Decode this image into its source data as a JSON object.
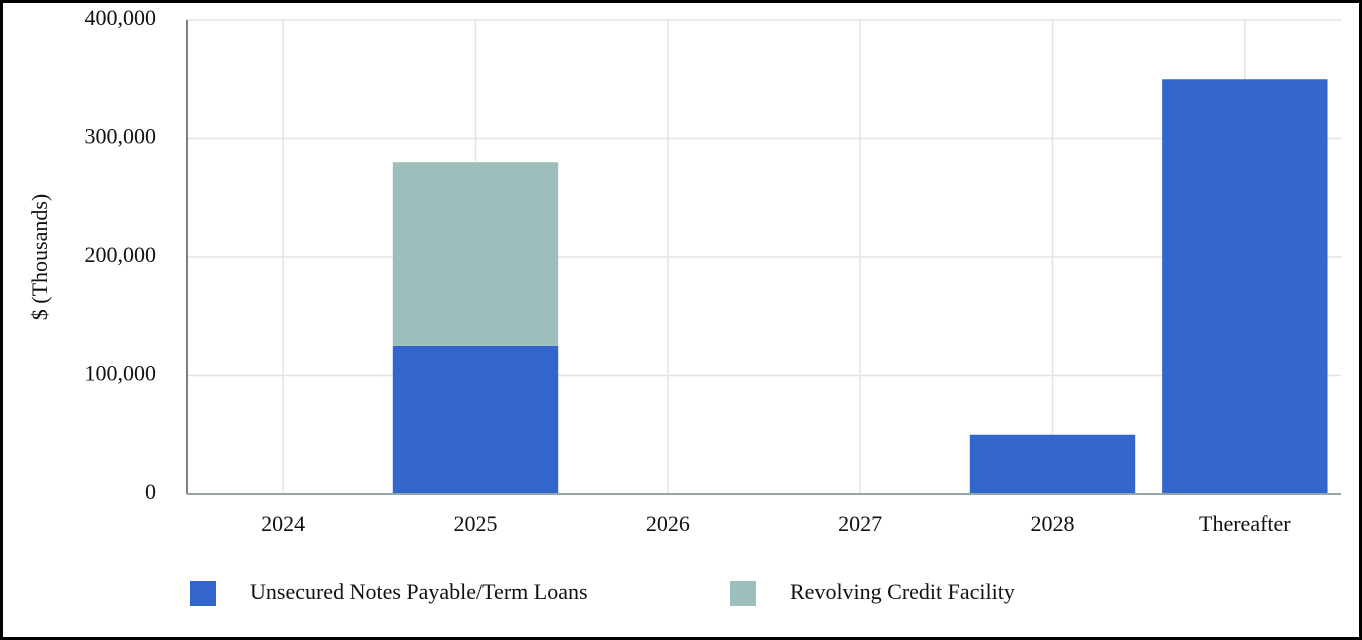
{
  "chart_data": {
    "type": "stacked-bar",
    "y_label": "$ (Thousands)",
    "categories": [
      "2024",
      "2025",
      "2026",
      "2027",
      "2028",
      "Thereafter"
    ],
    "series": [
      {
        "name": "Unsecured Notes Payable/Term Loans",
        "color": "#3366cc",
        "values": [
          0,
          125000,
          0,
          0,
          50000,
          350000
        ]
      },
      {
        "name": "Revolving Credit Facility",
        "color": "#9dbfbc",
        "values": [
          0,
          155000,
          0,
          0,
          0,
          0
        ]
      }
    ],
    "ylim": [
      0,
      400000
    ],
    "yticks": [
      0,
      {
        "value": 100000,
        "label": "100,000"
      },
      {
        "value": 200000,
        "label": "200,000"
      },
      {
        "value": 300000,
        "label": "300,000"
      },
      {
        "value": 400000,
        "label": "400,000"
      }
    ],
    "grid": true
  }
}
